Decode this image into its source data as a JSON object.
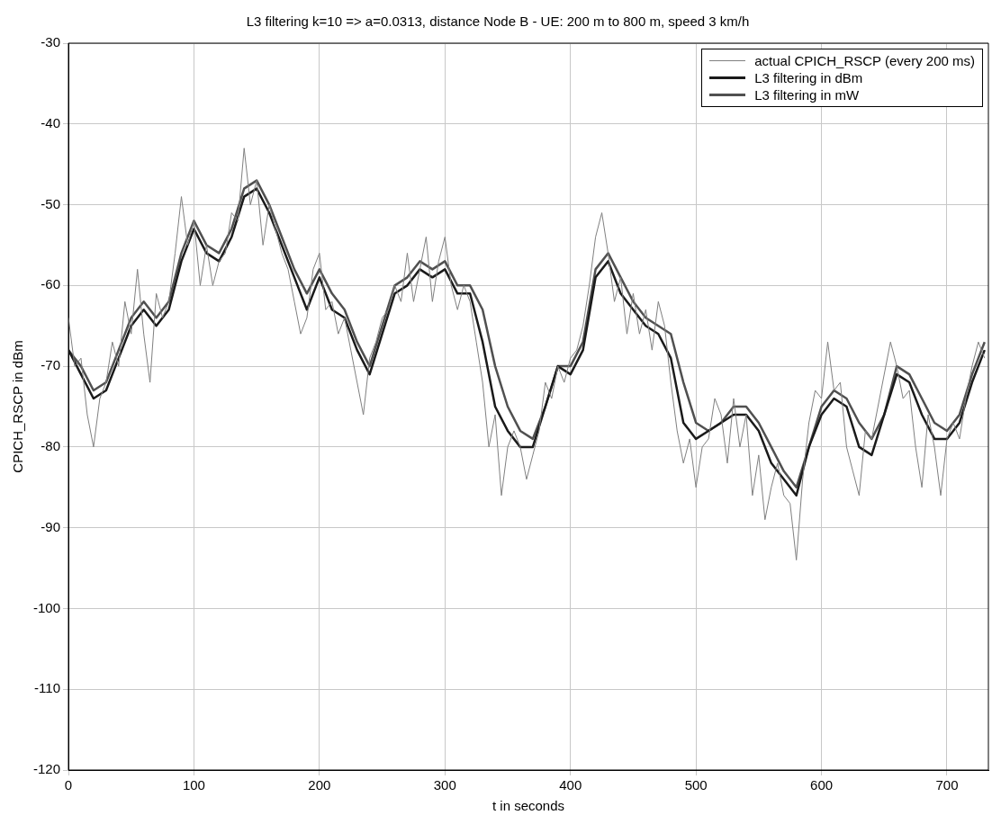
{
  "chart_data": {
    "type": "line",
    "title": "L3 filtering k=10 => a=0.0313, distance Node B - UE: 200 m to 800 m, speed 3 km/h",
    "xlabel": "t in seconds",
    "ylabel": "CPICH_RSCP in dBm",
    "xlim": [
      0,
      733
    ],
    "xticks": [
      0,
      100,
      200,
      300,
      400,
      500,
      600,
      700
    ],
    "ylim": [
      -120,
      -30
    ],
    "yticks": [
      -120,
      -110,
      -100,
      -90,
      -80,
      -70,
      -60,
      -50,
      -40,
      -30
    ],
    "grid": true,
    "legend": "top right",
    "marker": "none",
    "line_style": "solid",
    "series": [
      {
        "name": "actual CPICH_RSCP (every 200 ms)",
        "color": "#808080",
        "x": [
          0,
          5,
          10,
          15,
          20,
          25,
          30,
          35,
          40,
          45,
          50,
          55,
          60,
          65,
          70,
          75,
          80,
          85,
          90,
          95,
          100,
          105,
          110,
          115,
          120,
          125,
          130,
          135,
          140,
          145,
          150,
          155,
          160,
          165,
          170,
          175,
          180,
          185,
          190,
          195,
          200,
          205,
          210,
          215,
          220,
          225,
          230,
          235,
          240,
          245,
          250,
          255,
          260,
          265,
          270,
          275,
          280,
          285,
          290,
          295,
          300,
          305,
          310,
          315,
          320,
          325,
          330,
          335,
          340,
          345,
          350,
          355,
          360,
          365,
          370,
          375,
          380,
          385,
          390,
          395,
          400,
          405,
          410,
          415,
          420,
          425,
          430,
          435,
          440,
          445,
          450,
          455,
          460,
          465,
          470,
          475,
          480,
          485,
          490,
          495,
          500,
          505,
          510,
          515,
          520,
          525,
          530,
          535,
          540,
          545,
          550,
          555,
          560,
          565,
          570,
          575,
          580,
          585,
          590,
          595,
          600,
          605,
          610,
          615,
          620,
          625,
          630,
          635,
          640,
          645,
          650,
          655,
          660,
          665,
          670,
          675,
          680,
          685,
          690,
          695,
          700,
          705,
          710,
          715,
          720,
          725,
          730
        ],
        "values": [
          -64,
          -70,
          -69,
          -76,
          -80,
          -74,
          -72,
          -67,
          -70,
          -62,
          -66,
          -58,
          -66,
          -72,
          -61,
          -64,
          -62,
          -56,
          -49,
          -55,
          -52,
          -60,
          -55,
          -60,
          -57,
          -56,
          -51,
          -52,
          -43,
          -50,
          -47,
          -55,
          -50,
          -53,
          -56,
          -58,
          -62,
          -66,
          -64,
          -58,
          -56,
          -63,
          -62,
          -66,
          -64,
          -68,
          -72,
          -76,
          -69,
          -67,
          -64,
          -63,
          -60,
          -62,
          -56,
          -62,
          -58,
          -54,
          -62,
          -57,
          -54,
          -60,
          -63,
          -60,
          -62,
          -67,
          -72,
          -80,
          -76,
          -86,
          -80,
          -78,
          -80,
          -84,
          -81,
          -78,
          -72,
          -74,
          -70,
          -72,
          -69,
          -68,
          -65,
          -60,
          -54,
          -51,
          -56,
          -62,
          -59,
          -66,
          -61,
          -66,
          -63,
          -68,
          -62,
          -65,
          -72,
          -78,
          -82,
          -79,
          -85,
          -80,
          -79,
          -74,
          -76,
          -82,
          -74,
          -80,
          -76,
          -86,
          -81,
          -89,
          -85,
          -82,
          -86,
          -87,
          -94,
          -84,
          -77,
          -73,
          -74,
          -67,
          -73,
          -72,
          -80,
          -83,
          -86,
          -78,
          -79,
          -75,
          -71,
          -67,
          -70,
          -74,
          -73,
          -80,
          -85,
          -76,
          -80,
          -86,
          -79,
          -77,
          -79,
          -74,
          -70,
          -67,
          -69
        ]
      },
      {
        "name": "L3 filtering in dBm",
        "color": "#1a1a1a",
        "x": [
          0,
          10,
          20,
          30,
          40,
          50,
          60,
          70,
          80,
          90,
          100,
          110,
          120,
          130,
          140,
          150,
          160,
          170,
          180,
          190,
          200,
          210,
          220,
          230,
          240,
          250,
          260,
          270,
          280,
          290,
          300,
          310,
          320,
          330,
          340,
          350,
          360,
          370,
          380,
          390,
          400,
          410,
          420,
          430,
          440,
          450,
          460,
          470,
          480,
          490,
          500,
          510,
          520,
          530,
          540,
          550,
          560,
          570,
          580,
          590,
          600,
          610,
          620,
          630,
          640,
          650,
          660,
          670,
          680,
          690,
          700,
          710,
          720,
          730
        ],
        "values": [
          -68,
          -71,
          -74,
          -73,
          -69,
          -65,
          -63,
          -65,
          -63,
          -57,
          -53,
          -56,
          -57,
          -54,
          -49,
          -48,
          -51,
          -55,
          -59,
          -63,
          -59,
          -63,
          -64,
          -68,
          -71,
          -66,
          -61,
          -60,
          -58,
          -59,
          -58,
          -61,
          -61,
          -67,
          -75,
          -78,
          -80,
          -80,
          -75,
          -70,
          -71,
          -68,
          -59,
          -57,
          -61,
          -63,
          -65,
          -66,
          -69,
          -77,
          -79,
          -78,
          -77,
          -76,
          -76,
          -78,
          -82,
          -84,
          -86,
          -80,
          -76,
          -74,
          -75,
          -80,
          -81,
          -76,
          -71,
          -72,
          -76,
          -79,
          -79,
          -77,
          -72,
          -68
        ]
      },
      {
        "name": "L3 filtering in mW",
        "color": "#505050",
        "x": [
          0,
          10,
          20,
          30,
          40,
          50,
          60,
          70,
          80,
          90,
          100,
          110,
          120,
          130,
          140,
          150,
          160,
          170,
          180,
          190,
          200,
          210,
          220,
          230,
          240,
          250,
          260,
          270,
          280,
          290,
          300,
          310,
          320,
          330,
          340,
          350,
          360,
          370,
          380,
          390,
          400,
          410,
          420,
          430,
          440,
          450,
          460,
          470,
          480,
          490,
          500,
          510,
          520,
          530,
          540,
          550,
          560,
          570,
          580,
          590,
          600,
          610,
          620,
          630,
          640,
          650,
          660,
          670,
          680,
          690,
          700,
          710,
          720,
          730
        ],
        "values": [
          -68,
          -70,
          -73,
          -72,
          -68,
          -64,
          -62,
          -64,
          -62,
          -56,
          -52,
          -55,
          -56,
          -53,
          -48,
          -47,
          -50,
          -54,
          -58,
          -61,
          -58,
          -61,
          -63,
          -67,
          -70,
          -65,
          -60,
          -59,
          -57,
          -58,
          -57,
          -60,
          -60,
          -63,
          -70,
          -75,
          -78,
          -79,
          -75,
          -70,
          -70,
          -67,
          -58,
          -56,
          -59,
          -62,
          -64,
          -65,
          -66,
          -72,
          -77,
          -78,
          -77,
          -75,
          -75,
          -77,
          -80,
          -83,
          -85,
          -80,
          -75,
          -73,
          -74,
          -77,
          -79,
          -76,
          -70,
          -71,
          -74,
          -77,
          -78,
          -76,
          -71,
          -67
        ]
      }
    ]
  }
}
